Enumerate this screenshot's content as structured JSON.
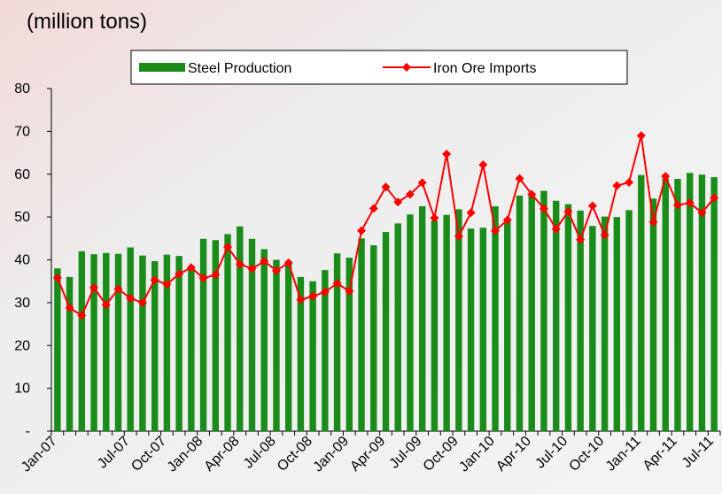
{
  "chart_data": {
    "type": "bar_line",
    "subtitle": "(million tons)",
    "categories": [
      "Jan-07",
      null,
      null,
      null,
      null,
      null,
      "Jul-07",
      null,
      null,
      "Oct-07",
      null,
      null,
      "Jan-08",
      null,
      null,
      "Apr-08",
      null,
      null,
      "Jul-08",
      null,
      null,
      "Oct-08",
      null,
      null,
      "Jan-09",
      null,
      null,
      "Apr-09",
      null,
      null,
      "Jul-09",
      null,
      null,
      "Oct-09",
      null,
      null,
      "Jan-10",
      null,
      null,
      "Apr-10",
      null,
      null,
      "Jul-10",
      null,
      null,
      "Oct-10",
      null,
      null,
      "Jan-11",
      null,
      null,
      "Apr-11",
      null,
      null,
      "Jul-11"
    ],
    "series": [
      {
        "name": "Steel Production",
        "type": "bar",
        "color": "#198c19",
        "values": [
          38,
          36,
          42,
          41.3,
          41.6,
          41.4,
          42.9,
          41,
          39.7,
          41.2,
          40.9,
          38.2,
          44.9,
          44.6,
          46,
          47.8,
          44.9,
          42.5,
          40,
          39,
          36,
          35,
          37.6,
          41.5,
          40.5,
          45,
          43.4,
          46.5,
          48.5,
          50.6,
          52.5,
          49.2,
          50.5,
          51.8,
          47.3,
          47.5,
          52.5,
          49,
          55,
          55.5,
          56.1,
          53.8,
          53,
          51.5,
          47.9,
          50.1,
          50,
          51.6,
          59.8,
          54.3,
          59,
          58.9,
          60.3,
          59.9,
          59.3
        ]
      },
      {
        "name": "Iron Ore Imports",
        "type": "line",
        "color": "#ff0000",
        "values": [
          35.8,
          28.8,
          27,
          33.5,
          29.5,
          33.2,
          31,
          30,
          35.3,
          34.3,
          36.7,
          38.2,
          35.7,
          36.5,
          43,
          39,
          37.9,
          39.7,
          37.5,
          39.3,
          30.7,
          31.5,
          32.5,
          34.5,
          32.7,
          46.8,
          52,
          57,
          53.5,
          55.3,
          58,
          49.8,
          64.7,
          45.5,
          51,
          62.2,
          46.8,
          49.3,
          59,
          55.3,
          52,
          47.2,
          51.3,
          44.7,
          52.6,
          45.8,
          57.3,
          58.1,
          69,
          48.8,
          59.5,
          52.8,
          53.3,
          51,
          54.5
        ]
      }
    ],
    "ylim": [
      0,
      80
    ],
    "yticks": [
      {
        "value": 0,
        "label": "-"
      },
      10,
      20,
      30,
      40,
      50,
      60,
      70,
      80
    ],
    "legend": "top"
  }
}
